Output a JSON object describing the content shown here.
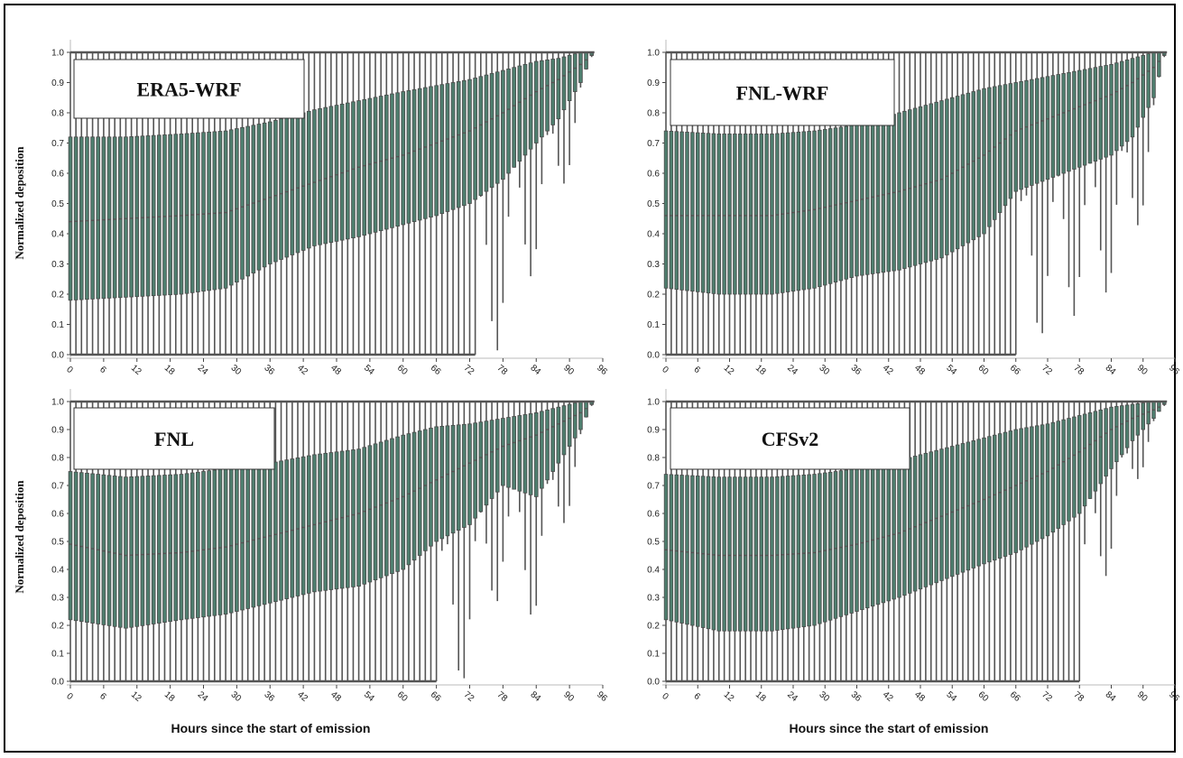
{
  "figure": {
    "ylabel": "Normalized deposition",
    "xlabel": "Hours since the start of emission"
  },
  "colors": {
    "whisker": "#555555",
    "box": "#4f7f6f",
    "median": "#6f9f8f"
  },
  "chart_data": [
    {
      "type": "box",
      "title": "ERA5-WRF",
      "xlabel": "",
      "ylabel": "Normalized deposition",
      "xticks": [
        0,
        6,
        12,
        18,
        24,
        30,
        36,
        42,
        48,
        54,
        60,
        66,
        72,
        78,
        84,
        90,
        96
      ],
      "yticks": [
        0.0,
        0.1,
        0.2,
        0.3,
        0.4,
        0.5,
        0.6,
        0.7,
        0.8,
        0.9,
        1.0
      ],
      "xlim": [
        0,
        96
      ],
      "ylim": [
        0,
        1.0
      ],
      "profile": {
        "x": [
          0,
          10,
          20,
          28,
          36,
          44,
          52,
          60,
          66,
          72,
          78,
          84,
          88,
          92,
          94
        ],
        "q1": [
          0.18,
          0.19,
          0.2,
          0.22,
          0.3,
          0.36,
          0.39,
          0.43,
          0.46,
          0.5,
          0.58,
          0.7,
          0.78,
          0.9,
          0.99
        ],
        "median": [
          0.44,
          0.45,
          0.46,
          0.47,
          0.52,
          0.57,
          0.62,
          0.66,
          0.7,
          0.74,
          0.8,
          0.87,
          0.91,
          0.96,
          0.99
        ],
        "q3": [
          0.72,
          0.72,
          0.73,
          0.74,
          0.77,
          0.81,
          0.84,
          0.87,
          0.89,
          0.91,
          0.94,
          0.97,
          0.98,
          1.0,
          1.0
        ],
        "whisk_low_zero_until": 73
      }
    },
    {
      "type": "box",
      "title": "FNL-WRF",
      "xlabel": "",
      "ylabel": "",
      "xticks": [
        0,
        6,
        12,
        18,
        24,
        30,
        36,
        42,
        48,
        54,
        60,
        66,
        72,
        78,
        84,
        90,
        96
      ],
      "yticks": [
        0.0,
        0.1,
        0.2,
        0.3,
        0.4,
        0.5,
        0.6,
        0.7,
        0.8,
        0.9,
        1.0
      ],
      "xlim": [
        0,
        96
      ],
      "ylim": [
        0,
        1.0
      ],
      "profile": {
        "x": [
          0,
          10,
          20,
          28,
          36,
          44,
          52,
          60,
          66,
          72,
          78,
          84,
          88,
          92,
          94
        ],
        "q1": [
          0.22,
          0.2,
          0.2,
          0.22,
          0.26,
          0.28,
          0.32,
          0.4,
          0.54,
          0.58,
          0.62,
          0.66,
          0.72,
          0.85,
          0.99
        ],
        "median": [
          0.46,
          0.46,
          0.46,
          0.48,
          0.51,
          0.54,
          0.58,
          0.66,
          0.74,
          0.78,
          0.82,
          0.86,
          0.9,
          0.95,
          0.99
        ],
        "q3": [
          0.74,
          0.73,
          0.73,
          0.74,
          0.76,
          0.8,
          0.84,
          0.88,
          0.9,
          0.92,
          0.94,
          0.96,
          0.98,
          1.0,
          1.0
        ],
        "whisk_low_zero_until": 66
      }
    },
    {
      "type": "box",
      "title": "FNL",
      "xlabel": "Hours since the start of emission",
      "ylabel": "Normalized deposition",
      "xticks": [
        0,
        6,
        12,
        18,
        24,
        30,
        36,
        42,
        48,
        54,
        60,
        66,
        72,
        78,
        84,
        90,
        96
      ],
      "yticks": [
        0.0,
        0.1,
        0.2,
        0.3,
        0.4,
        0.5,
        0.6,
        0.7,
        0.8,
        0.9,
        1.0
      ],
      "xlim": [
        0,
        96
      ],
      "ylim": [
        0,
        1.0
      ],
      "profile": {
        "x": [
          0,
          10,
          20,
          28,
          36,
          44,
          52,
          60,
          66,
          72,
          78,
          84,
          88,
          92,
          94
        ],
        "q1": [
          0.22,
          0.19,
          0.22,
          0.24,
          0.28,
          0.32,
          0.34,
          0.4,
          0.5,
          0.56,
          0.7,
          0.66,
          0.78,
          0.9,
          0.99
        ],
        "median": [
          0.49,
          0.45,
          0.46,
          0.48,
          0.52,
          0.56,
          0.6,
          0.66,
          0.72,
          0.78,
          0.84,
          0.88,
          0.92,
          0.96,
          0.99
        ],
        "q3": [
          0.75,
          0.73,
          0.74,
          0.76,
          0.78,
          0.81,
          0.83,
          0.88,
          0.91,
          0.92,
          0.94,
          0.96,
          0.98,
          1.0,
          1.0
        ],
        "whisk_low_zero_until": 66
      }
    },
    {
      "type": "box",
      "title": "CFSv2",
      "xlabel": "Hours since the start of emission",
      "ylabel": "",
      "xticks": [
        0,
        6,
        12,
        18,
        24,
        30,
        36,
        42,
        48,
        54,
        60,
        66,
        72,
        78,
        84,
        90,
        96
      ],
      "yticks": [
        0.0,
        0.1,
        0.2,
        0.3,
        0.4,
        0.5,
        0.6,
        0.7,
        0.8,
        0.9,
        1.0
      ],
      "xlim": [
        0,
        96
      ],
      "ylim": [
        0,
        1.0
      ],
      "profile": {
        "x": [
          0,
          10,
          20,
          28,
          36,
          44,
          52,
          60,
          66,
          72,
          78,
          84,
          88,
          92,
          94
        ],
        "q1": [
          0.22,
          0.18,
          0.18,
          0.2,
          0.25,
          0.3,
          0.36,
          0.42,
          0.46,
          0.52,
          0.6,
          0.76,
          0.86,
          0.94,
          0.99
        ],
        "median": [
          0.47,
          0.45,
          0.45,
          0.46,
          0.49,
          0.53,
          0.59,
          0.65,
          0.7,
          0.75,
          0.82,
          0.9,
          0.94,
          0.97,
          0.99
        ],
        "q3": [
          0.74,
          0.73,
          0.73,
          0.74,
          0.76,
          0.79,
          0.83,
          0.87,
          0.9,
          0.92,
          0.95,
          0.98,
          0.99,
          1.0,
          1.0
        ],
        "whisk_low_zero_until": 78
      }
    }
  ]
}
